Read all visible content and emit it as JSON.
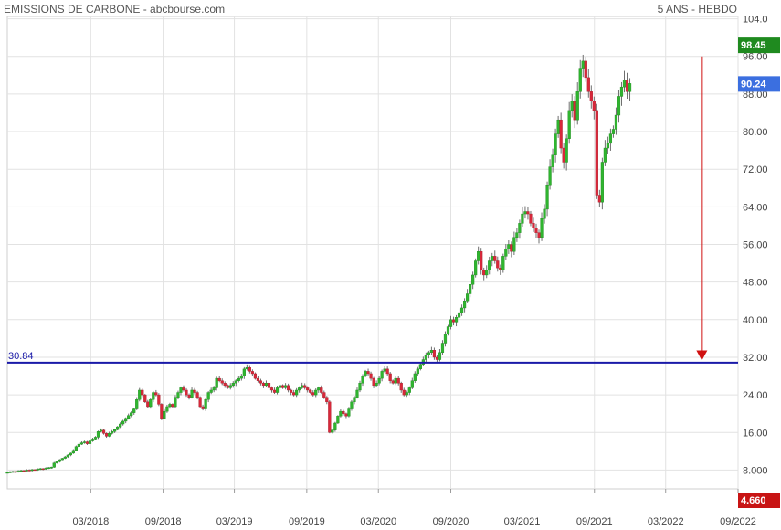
{
  "header": {
    "title": "EMISSIONS DE CARBONE - abcbourse.com",
    "period": "5 ANS - HEBDO"
  },
  "colors": {
    "up": "#2fb52f",
    "down": "#d8283a",
    "wick": "#6e6e6e",
    "reference_line": "#1a1aa8",
    "arrow": "#d01010",
    "high_badge": "#1f8a1f",
    "last_badge": "#3b6fe0",
    "low_badge": "#c81414",
    "grid": "#e2e2e2"
  },
  "chart_data": {
    "type": "candlestick",
    "title": "EMISSIONS DE CARBONE - abcbourse.com",
    "subtitle": "5 ANS - HEBDO",
    "y_axis": {
      "position": "right",
      "range": [
        4.0,
        104.5
      ],
      "ticks": [
        "8.000",
        "16.00",
        "24.00",
        "32.00",
        "40.00",
        "48.00",
        "56.00",
        "64.00",
        "72.00",
        "80.00",
        "88.00",
        "96.00",
        "104.0"
      ]
    },
    "x_axis": {
      "range": [
        "2017-08-01",
        "2022-09-01"
      ],
      "ticks": [
        {
          "label": "03/2018",
          "date": "2018-03-01"
        },
        {
          "label": "09/2018",
          "date": "2018-09-01"
        },
        {
          "label": "03/2019",
          "date": "2019-03-01"
        },
        {
          "label": "09/2019",
          "date": "2019-09-01"
        },
        {
          "label": "03/2020",
          "date": "2020-03-01"
        },
        {
          "label": "09/2020",
          "date": "2020-09-01"
        },
        {
          "label": "03/2021",
          "date": "2021-03-01"
        },
        {
          "label": "09/2021",
          "date": "2021-09-01"
        },
        {
          "label": "03/2022",
          "date": "2022-03-01"
        },
        {
          "label": "09/2022",
          "date": "2022-09-01"
        }
      ]
    },
    "grid": true,
    "start": "2017-08-01",
    "weekly_closes": [
      7.5,
      7.6,
      7.7,
      7.6,
      7.8,
      7.9,
      7.8,
      8.0,
      7.9,
      8.1,
      8.0,
      8.2,
      8.3,
      8.2,
      8.4,
      8.5,
      8.6,
      9.5,
      9.8,
      10.2,
      10.5,
      10.8,
      11.2,
      11.6,
      12.2,
      13.0,
      13.5,
      13.8,
      14.0,
      13.6,
      14.2,
      14.6,
      15.0,
      16.2,
      16.5,
      15.8,
      15.2,
      15.8,
      16.2,
      16.6,
      17.2,
      17.8,
      18.4,
      19.0,
      19.6,
      20.2,
      21.0,
      23.0,
      25.0,
      24.0,
      22.5,
      21.5,
      23.0,
      24.5,
      24.0,
      22.0,
      19.0,
      20.5,
      21.5,
      22.0,
      21.5,
      23.5,
      24.5,
      25.5,
      25.0,
      24.0,
      23.5,
      25.0,
      24.5,
      23.5,
      21.5,
      21.0,
      23.0,
      24.5,
      25.0,
      25.5,
      27.5,
      27.0,
      26.5,
      26.0,
      25.5,
      26.0,
      26.5,
      27.0,
      27.5,
      28.0,
      29.5,
      29.8,
      29.0,
      28.5,
      27.5,
      27.0,
      26.5,
      26.0,
      26.5,
      25.5,
      25.0,
      24.5,
      25.5,
      26.0,
      25.5,
      26.0,
      25.0,
      24.5,
      24.0,
      25.0,
      25.5,
      26.0,
      25.5,
      25.0,
      24.5,
      24.0,
      25.0,
      25.5,
      24.5,
      23.5,
      22.5,
      16.0,
      16.5,
      18.0,
      19.5,
      20.5,
      20.0,
      19.5,
      21.0,
      22.5,
      23.5,
      25.0,
      26.5,
      28.0,
      29.0,
      28.5,
      27.5,
      26.0,
      26.5,
      27.5,
      29.0,
      29.5,
      28.5,
      27.0,
      26.5,
      27.5,
      26.5,
      25.0,
      24.0,
      24.5,
      25.5,
      27.0,
      28.5,
      29.5,
      30.5,
      31.5,
      32.5,
      33.0,
      33.5,
      32.0,
      31.5,
      33.0,
      35.0,
      37.0,
      38.5,
      40.0,
      39.5,
      40.5,
      41.5,
      42.5,
      44.0,
      45.5,
      47.5,
      49.5,
      52.5,
      54.5,
      50.5,
      49.5,
      50.5,
      52.5,
      53.5,
      52.5,
      51.0,
      50.5,
      53.5,
      55.0,
      56.0,
      54.5,
      57.5,
      58.5,
      60.5,
      62.5,
      63.0,
      62.5,
      60.5,
      59.5,
      58.5,
      57.5,
      61.5,
      63.5,
      68.5,
      72.5,
      75.0,
      79.5,
      82.5,
      76.5,
      73.5,
      78.5,
      84.5,
      86.5,
      82.5,
      88.5,
      93.5,
      95.0,
      91.5,
      88.5,
      86.5,
      84.5,
      66.5,
      65.0,
      73.5,
      76.5,
      77.5,
      79.5,
      80.5,
      83.5,
      87.5,
      89.5,
      91.0,
      88.5,
      90.24
    ],
    "reference_line": {
      "value": 30.84,
      "label": "30.84"
    },
    "badges": [
      {
        "label": "98.45",
        "value": 98.45,
        "kind": "high"
      },
      {
        "label": "90.24",
        "value": 90.24,
        "kind": "last"
      },
      {
        "label": "4.660",
        "value": 4.66,
        "kind": "low"
      }
    ],
    "annotation": {
      "type": "arrow",
      "from_value": 96.0,
      "to_value": 31.5,
      "date": "2022-06-01"
    }
  }
}
